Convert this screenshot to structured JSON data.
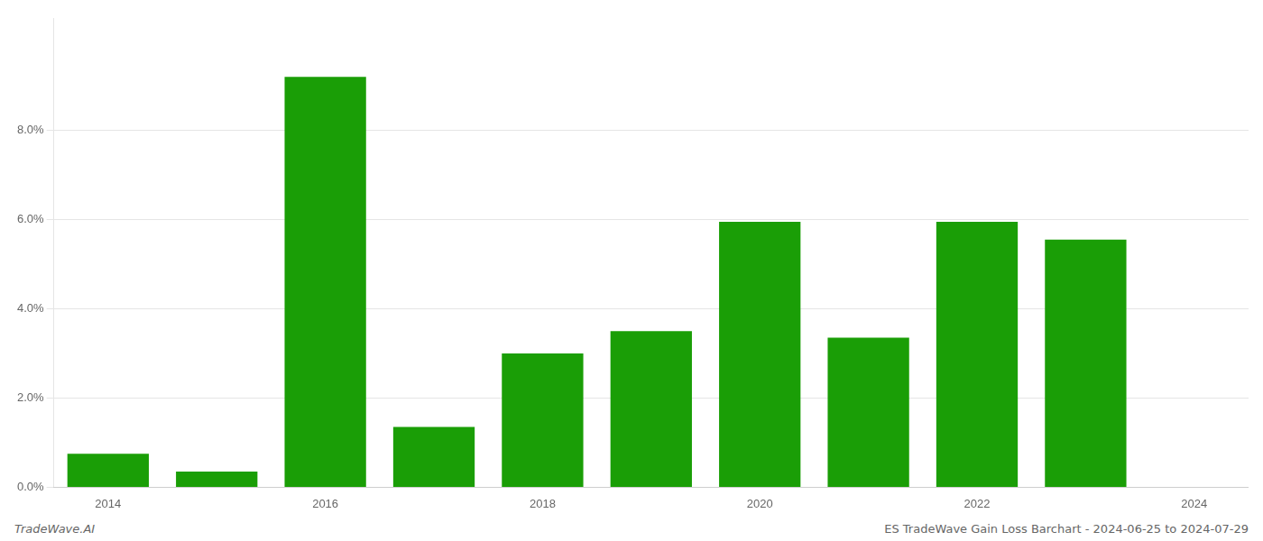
{
  "chart_data": {
    "type": "bar",
    "categories": [
      "2014",
      null,
      "2016",
      null,
      "2018",
      null,
      "2020",
      null,
      "2022",
      null,
      "2024"
    ],
    "values": [
      0.0075,
      0.0035,
      0.092,
      0.0135,
      0.03,
      0.035,
      0.0595,
      0.0335,
      0.0595,
      0.0555,
      null
    ],
    "color": "#1a9e06",
    "ylim": [
      0,
      0.105
    ],
    "yticks": [
      {
        "value": 0.0,
        "label": "0.0%"
      },
      {
        "value": 0.02,
        "label": "2.0%"
      },
      {
        "value": 0.04,
        "label": "4.0%"
      },
      {
        "value": 0.06,
        "label": "6.0%"
      },
      {
        "value": 0.08,
        "label": "8.0%"
      }
    ],
    "grid": true,
    "annotations": [
      "TradeWave.AI",
      "ES TradeWave Gain Loss Barchart - 2024-06-25 to 2024-07-29"
    ]
  }
}
